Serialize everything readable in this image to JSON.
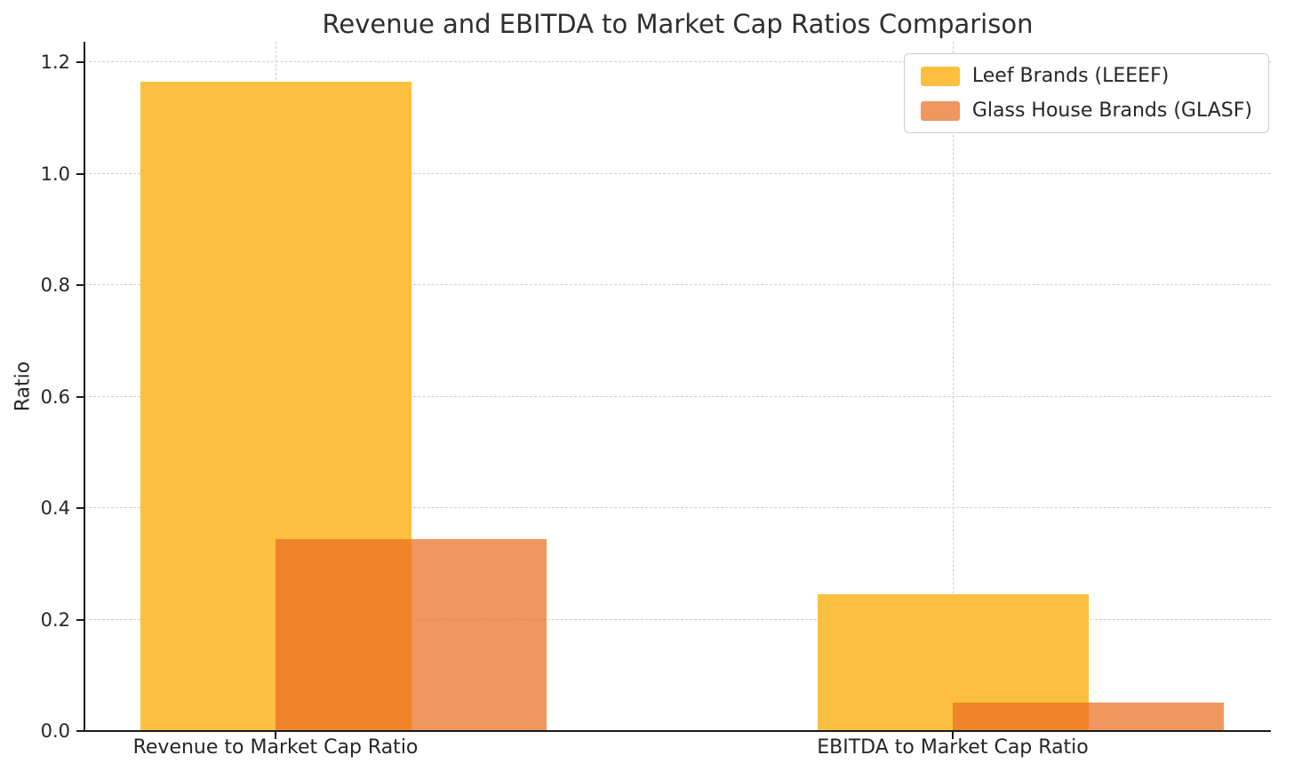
{
  "chart_data": {
    "type": "bar",
    "title": "Revenue and EBITDA to Market Cap Ratios Comparison",
    "xlabel": "",
    "ylabel": "Ratio",
    "categories": [
      "Revenue to Market Cap Ratio",
      "EBITDA to Market Cap Ratio"
    ],
    "series": [
      {
        "name": "Leef Brands (LEEEF)",
        "color": "#FDBF3F",
        "alpha": 1.0,
        "values": [
          1.165,
          0.245
        ]
      },
      {
        "name": "Glass House Brands (GLASF)",
        "color": "#EA6D21",
        "alpha": 0.72,
        "values": [
          0.345,
          0.051
        ]
      }
    ],
    "ylim": [
      0,
      1.2
    ],
    "yticks": [
      0.0,
      0.2,
      0.4,
      0.6,
      0.8,
      1.0,
      1.2
    ],
    "grid": true,
    "grid_style": "dashed",
    "legend_position": "upper right",
    "background_color": "#ffffff"
  }
}
